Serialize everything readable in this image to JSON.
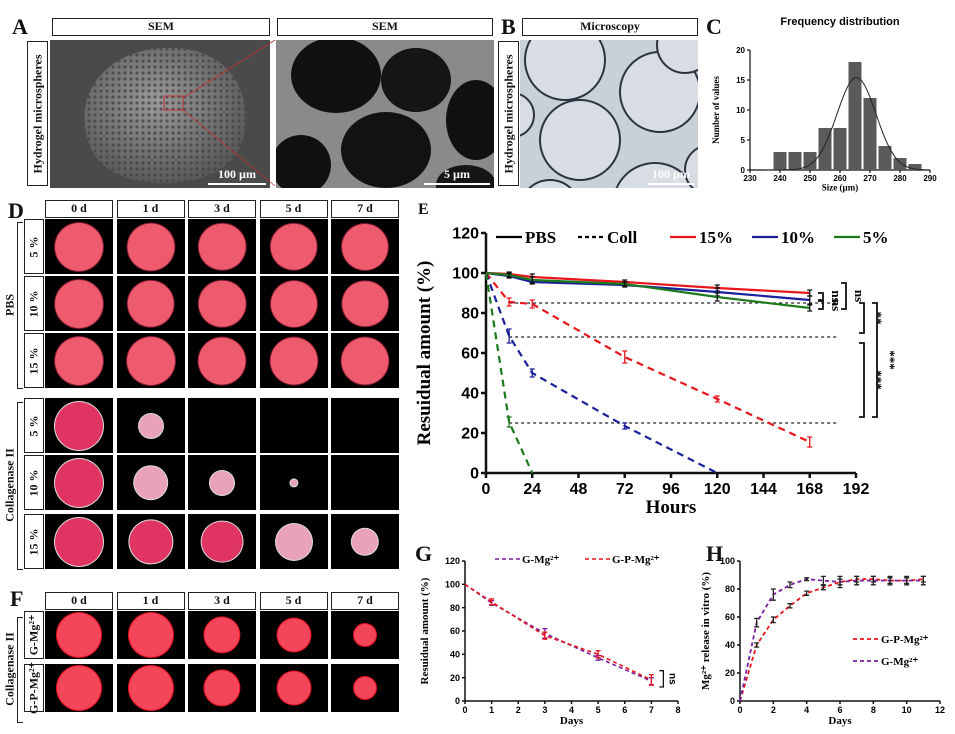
{
  "panels": {
    "A": {
      "label": "A",
      "headers": [
        "SEM",
        "SEM"
      ],
      "row_label": "Hydrogel microspheres",
      "scalebars": [
        "100 µm",
        "5 µm"
      ]
    },
    "B": {
      "label": "B",
      "header": "Microscopy",
      "row_label": "Hydrogel microspheres",
      "scalebar": "100 µm"
    },
    "C": {
      "label": "C"
    },
    "D": {
      "label": "D",
      "columns": [
        "0 d",
        "1 d",
        "3 d",
        "5 d",
        "7 d"
      ],
      "groups": [
        {
          "name": "PBS",
          "rows": [
            "5 %",
            "10 %",
            "15 %"
          ],
          "relative_size": [
            [
              1,
              0.98,
              0.97,
              0.97,
              0.96
            ],
            [
              1,
              0.97,
              0.97,
              0.96,
              0.95
            ],
            [
              1,
              1,
              0.98,
              0.98,
              0.98
            ]
          ]
        },
        {
          "name": "Collagenase II",
          "rows": [
            "5 %",
            "10 %",
            "15 %"
          ],
          "relative_size": [
            [
              1,
              0.5,
              0,
              0,
              0
            ],
            [
              1,
              0.7,
              0.5,
              0.15,
              0
            ],
            [
              1,
              0.9,
              0.85,
              0.75,
              0.55
            ]
          ]
        }
      ]
    },
    "E": {
      "label": "E"
    },
    "F": {
      "label": "F",
      "columns": [
        "0 d",
        "1 d",
        "3 d",
        "5 d",
        "7 d"
      ],
      "group": "Collagenase II",
      "rows": [
        "G-Mg²⁺",
        "G-P-Mg²⁺"
      ],
      "relative_size": [
        [
          1,
          1,
          0.8,
          0.75,
          0.5
        ],
        [
          1,
          1,
          0.8,
          0.75,
          0.5
        ]
      ]
    },
    "G": {
      "label": "G"
    },
    "H": {
      "label": "H"
    }
  },
  "chart_data": [
    {
      "id": "C",
      "type": "bar",
      "title": "Frequency distribution",
      "xlabel": "Size (µm)",
      "ylabel": "Number of values",
      "xlim": [
        230,
        290
      ],
      "ylim": [
        0,
        20
      ],
      "xticks": [
        230,
        240,
        250,
        260,
        270,
        280,
        290
      ],
      "yticks": [
        0,
        5,
        10,
        15,
        20
      ],
      "bin_centers": [
        240,
        245,
        250,
        255,
        260,
        265,
        270,
        275,
        280,
        285
      ],
      "values": [
        3,
        3,
        3,
        7,
        7,
        18,
        12,
        4,
        2,
        1
      ],
      "gaussian_fit": {
        "mean": 265.5,
        "sd": 6.5,
        "peak": 15.4
      }
    },
    {
      "id": "E",
      "type": "line",
      "xlabel": "Hours",
      "ylabel": "Resuidual amount (%)",
      "xlim": [
        0,
        192
      ],
      "ylim": [
        0,
        120
      ],
      "xticks": [
        0,
        24,
        48,
        72,
        96,
        120,
        144,
        168,
        192
      ],
      "yticks": [
        0,
        20,
        40,
        60,
        80,
        100,
        120
      ],
      "legend": [
        {
          "name": "PBS",
          "style": "solid",
          "color": "#000000"
        },
        {
          "name": "Coll",
          "style": "dashed",
          "color": "#000000"
        },
        {
          "name": "15%",
          "style": "solid",
          "color": "#e8151b"
        },
        {
          "name": "10%",
          "style": "solid",
          "color": "#1b1f9a"
        },
        {
          "name": "5%",
          "style": "solid",
          "color": "#1c7a1c"
        }
      ],
      "series": [
        {
          "name": "PBS 15%",
          "color": "#e8151b",
          "dash": false,
          "x": [
            0,
            12,
            24,
            72,
            120,
            168
          ],
          "y": [
            100,
            99.5,
            98,
            95.5,
            92.5,
            90
          ],
          "err": [
            0,
            1,
            1.5,
            1,
            1.5,
            1.5
          ]
        },
        {
          "name": "PBS 10%",
          "color": "#1b1f9a",
          "dash": false,
          "x": [
            0,
            12,
            24,
            72,
            120,
            168
          ],
          "y": [
            100,
            98.5,
            95.5,
            94,
            90.5,
            86.5
          ],
          "err": [
            0,
            1,
            1,
            1,
            2,
            2
          ]
        },
        {
          "name": "PBS 5%",
          "color": "#1c7a1c",
          "dash": false,
          "x": [
            0,
            12,
            24,
            72,
            120,
            168
          ],
          "y": [
            100,
            99,
            96.5,
            94.5,
            88,
            82.5
          ],
          "err": [
            0,
            1,
            1.5,
            1,
            2,
            1.5
          ]
        },
        {
          "name": "Coll 15%",
          "color": "#e8151b",
          "dash": true,
          "x": [
            0,
            12,
            24,
            72,
            120,
            168
          ],
          "y": [
            100,
            85.5,
            84.5,
            58,
            37,
            15.5
          ],
          "err": [
            0,
            2,
            2,
            3,
            1.5,
            2.5
          ]
        },
        {
          "name": "Coll 10%",
          "color": "#1b1f9a",
          "dash": true,
          "x": [
            0,
            12,
            24,
            72,
            120
          ],
          "y": [
            100,
            68.5,
            50,
            23.5,
            0
          ],
          "err": [
            0,
            3.5,
            2,
            1.5,
            0
          ]
        },
        {
          "name": "Coll 5%",
          "color": "#1c7a1c",
          "dash": true,
          "x": [
            0,
            12,
            24
          ],
          "y": [
            100,
            25.5,
            0
          ],
          "err": [
            0,
            2.5,
            0
          ]
        }
      ],
      "reference_lines": [
        85,
        68,
        25
      ],
      "significance": [
        "ns",
        "ns",
        "ns",
        "**",
        "***",
        "***"
      ]
    },
    {
      "id": "G",
      "type": "line",
      "xlabel": "Days",
      "ylabel": "Resuidual amount (%)",
      "xlim": [
        0,
        8
      ],
      "ylim": [
        0,
        120
      ],
      "xticks": [
        0,
        1,
        2,
        3,
        4,
        5,
        6,
        7,
        8
      ],
      "yticks": [
        0,
        20,
        40,
        60,
        80,
        100,
        120
      ],
      "legend_position": "top",
      "series": [
        {
          "name": "G-Mg²⁺",
          "color": "#7b1fa2",
          "x": [
            0,
            1,
            3,
            5,
            7
          ],
          "y": [
            100,
            84,
            58,
            37,
            17
          ],
          "err": [
            0,
            2,
            4,
            2,
            3
          ]
        },
        {
          "name": "G-P-Mg²⁺",
          "color": "#e8151b",
          "x": [
            0,
            1,
            3,
            5,
            7
          ],
          "y": [
            100,
            85,
            56,
            40,
            18
          ],
          "err": [
            0,
            2.5,
            3,
            3,
            4.5
          ]
        }
      ],
      "significance": [
        "ns"
      ]
    },
    {
      "id": "H",
      "type": "line",
      "xlabel": "Days",
      "ylabel": "Mg²⁺ release in vitro (%)",
      "xlim": [
        0,
        12
      ],
      "ylim": [
        0,
        100
      ],
      "xticks": [
        0,
        2,
        4,
        6,
        8,
        10,
        12
      ],
      "yticks": [
        0,
        20,
        40,
        60,
        80,
        100
      ],
      "legend_position": "center-right",
      "series": [
        {
          "name": "G-P-Mg²⁺",
          "color": "#e8151b",
          "x": [
            0,
            1,
            2,
            3,
            4,
            5,
            6,
            7,
            8,
            9,
            10,
            11
          ],
          "y": [
            0,
            40,
            58,
            68,
            77,
            81,
            85,
            87,
            87,
            86,
            86,
            87
          ],
          "err": [
            0,
            1.5,
            2,
            1.5,
            1.5,
            1.5,
            2,
            2,
            2,
            2,
            2,
            2
          ]
        },
        {
          "name": "G-Mg²⁺",
          "color": "#7b1fa2",
          "x": [
            0,
            1,
            2,
            3,
            4,
            5,
            6,
            7,
            8,
            9,
            10,
            11
          ],
          "y": [
            0,
            56,
            76,
            83,
            87,
            86,
            85,
            86,
            86,
            86,
            86,
            86
          ],
          "err": [
            0,
            3,
            4,
            2,
            1,
            3,
            4,
            3,
            3,
            3,
            3,
            3
          ]
        }
      ]
    }
  ]
}
